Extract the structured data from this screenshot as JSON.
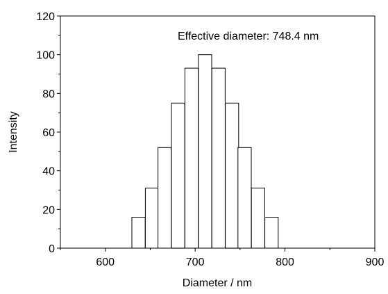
{
  "chart_data": {
    "type": "bar",
    "title": "",
    "annotation": "Effective diameter: 748.4 nm",
    "xlabel": "Diameter / nm",
    "ylabel": "Intensity",
    "xlim": [
      550,
      900
    ],
    "ylim": [
      0,
      120
    ],
    "xticks": [
      600,
      700,
      800,
      900
    ],
    "yticks": [
      0,
      20,
      40,
      60,
      80,
      100,
      120
    ],
    "grid": false,
    "legend": "none",
    "bar_width": 14.8,
    "bar_fill": "#ffffff",
    "bar_edge": "#000000",
    "x": [
      637,
      652,
      666,
      681,
      696,
      711,
      726,
      741,
      755,
      770,
      785
    ],
    "values": [
      16,
      31,
      52,
      75,
      93,
      100,
      93,
      75,
      52,
      31,
      16
    ]
  }
}
